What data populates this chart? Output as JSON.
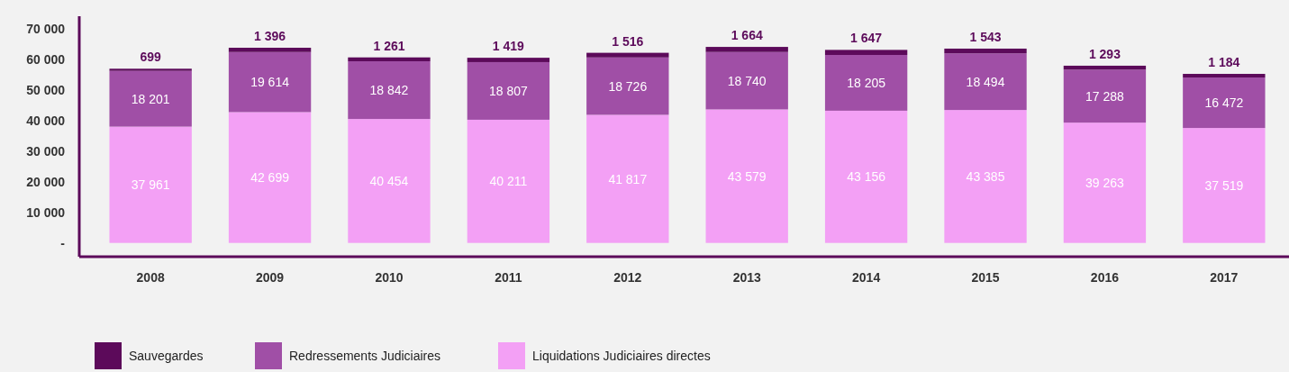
{
  "chart_data": {
    "type": "bar",
    "stacked": true,
    "categories": [
      "2008",
      "2009",
      "2010",
      "2011",
      "2012",
      "2013",
      "2014",
      "2015",
      "2016",
      "2017"
    ],
    "series": [
      {
        "name": "Liquidations Judiciaires directes",
        "color": "#f3a0f5",
        "values": [
          37961,
          42699,
          40454,
          40211,
          41817,
          43579,
          43156,
          43385,
          39263,
          37519
        ]
      },
      {
        "name": "Redressements Judiciaires",
        "color": "#a04fa6",
        "values": [
          18201,
          19614,
          18842,
          18807,
          18726,
          18740,
          18205,
          18494,
          17288,
          16472
        ]
      },
      {
        "name": "Sauvegardes",
        "color": "#5c0a5a",
        "values": [
          699,
          1396,
          1261,
          1419,
          1516,
          1664,
          1647,
          1543,
          1293,
          1184
        ]
      }
    ],
    "ylim": [
      -4500,
      74000
    ],
    "yticks": [
      {
        "value": 0,
        "label": "-"
      },
      {
        "value": 10000,
        "label": "10 000"
      },
      {
        "value": 20000,
        "label": "20 000"
      },
      {
        "value": 30000,
        "label": "30 000"
      },
      {
        "value": 40000,
        "label": "40 000"
      },
      {
        "value": 50000,
        "label": "50 000"
      },
      {
        "value": 60000,
        "label": "60 000"
      },
      {
        "value": 70000,
        "label": "70 000"
      }
    ],
    "data_labels": true,
    "grid": false,
    "legend": "bottom"
  }
}
